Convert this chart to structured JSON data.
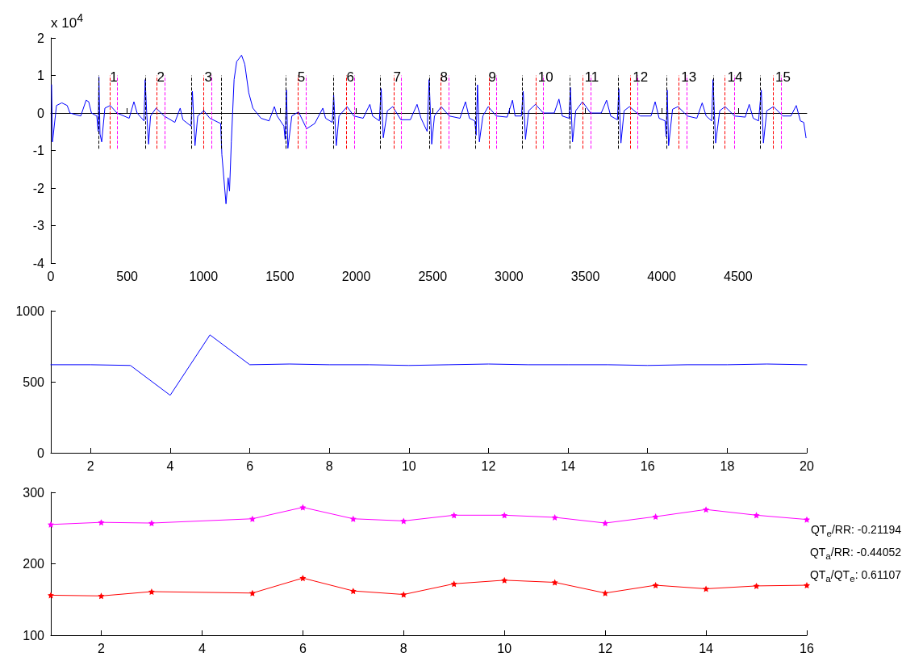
{
  "chart_data": [
    {
      "type": "line",
      "x": [
        5,
        11,
        37,
        72,
        107,
        125,
        196,
        231,
        248,
        266,
        301,
        310,
        315,
        322,
        333,
        354,
        389,
        433,
        513,
        544,
        565,
        610,
        618,
        627,
        640,
        653,
        689,
        742,
        812,
        847,
        865,
        918,
        927,
        944,
        962,
        1002,
        1041,
        1112,
        1120,
        1147,
        1161,
        1170,
        1182,
        1200,
        1217,
        1249,
        1270,
        1296,
        1323,
        1376,
        1429,
        1464,
        1482,
        1526,
        1534,
        1543,
        1552,
        1578,
        1622,
        1675,
        1728,
        1781,
        1799,
        1843,
        1852,
        1869,
        1887,
        1940,
        1984,
        2045,
        2089,
        2107,
        2151,
        2163,
        2177,
        2204,
        2239,
        2292,
        2354,
        2398,
        2424,
        2464,
        2477,
        2494,
        2512,
        2556,
        2609,
        2679,
        2715,
        2741,
        2776,
        2785,
        2794,
        2806,
        2829,
        2864,
        2917,
        2988,
        3023,
        3040,
        3081,
        3093,
        3108,
        3129,
        3173,
        3225,
        3296,
        3327,
        3349,
        3393,
        3402,
        3416,
        3437,
        3481,
        3534,
        3604,
        3639,
        3666,
        3710,
        3719,
        3733,
        3754,
        3789,
        3860,
        3930,
        3957,
        3983,
        4022,
        4029,
        4036,
        4045,
        4071,
        4107,
        4168,
        4230,
        4265,
        4291,
        4327,
        4336,
        4353,
        4380,
        4415,
        4477,
        4547,
        4573,
        4599,
        4634,
        4652,
        4666,
        4688,
        4732,
        4793,
        4846,
        4881,
        4908,
        4930,
        4945
      ],
      "series": [
        {
          "color": "#0000ff",
          "values": [
            0.75,
            -0.77,
            0.2,
            0.27,
            0.2,
            0,
            -0.08,
            0.34,
            0.3,
            0,
            -0.08,
            -0.49,
            0.96,
            -0.56,
            -0.77,
            0.13,
            0.2,
            0,
            -0.14,
            0.3,
            0,
            -0.21,
            0.89,
            0.06,
            -0.83,
            -0.08,
            0.13,
            -0.08,
            -0.25,
            0.13,
            -0.18,
            -0.35,
            0.58,
            -0.87,
            -0.08,
            0.06,
            -0.14,
            -0.28,
            -1.11,
            -2.42,
            -1.73,
            -2.08,
            -0.77,
            0.89,
            1.37,
            1.54,
            1.3,
            0.54,
            0.13,
            -0.14,
            -0.21,
            0.17,
            -0.08,
            -0.35,
            -0.7,
            0.61,
            -0.94,
            -0.08,
            0.03,
            -0.42,
            -0.28,
            0.13,
            -0.14,
            -0.25,
            0.48,
            -0.87,
            -0.08,
            0.17,
            -0.08,
            -0.14,
            0.23,
            -0.08,
            -0.21,
            0.65,
            -0.66,
            0.06,
            0.17,
            -0.18,
            -0.18,
            0.23,
            -0.14,
            -0.49,
            0.89,
            -0.83,
            -0.08,
            0.17,
            -0.08,
            -0.14,
            0.3,
            -0.14,
            -0.21,
            -0.59,
            0.75,
            -0.77,
            -0.08,
            0.17,
            -0.08,
            -0.11,
            0.34,
            -0.08,
            -0.08,
            0.58,
            -0.7,
            0.06,
            0.23,
            0,
            0,
            0.37,
            -0.08,
            -0.14,
            0.68,
            -0.77,
            0.06,
            0.3,
            0,
            0,
            0.34,
            -0.08,
            -0.18,
            0.65,
            -0.8,
            0.06,
            0.17,
            -0.08,
            -0.08,
            0.3,
            -0.14,
            -0.21,
            -0.63,
            0.61,
            -0.87,
            0.1,
            0.17,
            -0.08,
            -0.14,
            0.27,
            -0.08,
            -0.21,
            0.89,
            -0.8,
            0.06,
            0.17,
            -0.08,
            -0.11,
            0.23,
            -0.14,
            -0.21,
            0.61,
            -0.8,
            0.06,
            0.17,
            -0.08,
            -0.08,
            0.2,
            -0.21,
            -0.25,
            -0.66
          ]
        }
      ],
      "xlim": [
        0,
        4950
      ],
      "xticks": [
        0,
        500,
        1000,
        1500,
        2000,
        2500,
        3000,
        3500,
        4000,
        4500
      ],
      "ylim": [
        -4,
        2
      ],
      "yticks": [
        -4,
        -3,
        -2,
        -1,
        0,
        1,
        2
      ],
      "line_style": "solid",
      "annotations": [
        "x 10$^{4}$",
        {
          "text": "1",
          "x": 412,
          "y": 0.95
        },
        {
          "text": "2",
          "x": 720,
          "y": 0.95
        },
        {
          "text": "3",
          "x": 1032,
          "y": 0.95
        },
        {
          "text": "5",
          "x": 1640,
          "y": 0.95
        },
        {
          "text": "6",
          "x": 1961,
          "y": 0.95
        },
        {
          "text": "7",
          "x": 2268,
          "y": 0.95
        },
        {
          "text": "8",
          "x": 2574,
          "y": 0.95
        },
        {
          "text": "9",
          "x": 2891,
          "y": 0.95
        },
        {
          "text": "10",
          "x": 3240,
          "y": 0.95
        },
        {
          "text": "11",
          "x": 3542,
          "y": 0.95
        },
        {
          "text": "12",
          "x": 3860,
          "y": 0.95
        },
        {
          "text": "13",
          "x": 4177,
          "y": 0.95
        },
        {
          "text": "14",
          "x": 4480,
          "y": 0.95
        },
        {
          "text": "15",
          "x": 4794,
          "y": 0.95
        }
      ],
      "ref_lines": [
        {
          "axis": "x",
          "value": 313,
          "color": "#000000",
          "line_style": "dashed"
        },
        {
          "axis": "x",
          "value": 389,
          "color": "#ff0000",
          "line_style": "dashed"
        },
        {
          "axis": "x",
          "value": 437,
          "color": "#ff00ff",
          "line_style": "dashed"
        },
        {
          "axis": "x",
          "value": 618,
          "color": "#000000",
          "line_style": "dashed"
        },
        {
          "axis": "x",
          "value": 694,
          "color": "#ff0000",
          "line_style": "dashed"
        },
        {
          "axis": "x",
          "value": 747,
          "color": "#ff00ff",
          "line_style": "dashed"
        },
        {
          "axis": "x",
          "value": 919,
          "color": "#000000",
          "line_style": "dashed"
        },
        {
          "axis": "x",
          "value": 1002,
          "color": "#ff0000",
          "line_style": "dashed"
        },
        {
          "axis": "x",
          "value": 1050,
          "color": "#ff00ff",
          "line_style": "dashed"
        },
        {
          "axis": "x",
          "value": 1116,
          "color": "#000000",
          "line_style": "dashed"
        },
        {
          "axis": "x",
          "value": 1538,
          "color": "#000000",
          "line_style": "dashed"
        },
        {
          "axis": "x",
          "value": 1618,
          "color": "#ff0000",
          "line_style": "dashed"
        },
        {
          "axis": "x",
          "value": 1672,
          "color": "#ff00ff",
          "line_style": "dashed"
        },
        {
          "axis": "x",
          "value": 1848,
          "color": "#000000",
          "line_style": "dashed"
        },
        {
          "axis": "x",
          "value": 1934,
          "color": "#ff0000",
          "line_style": "dashed"
        },
        {
          "axis": "x",
          "value": 1989,
          "color": "#ff00ff",
          "line_style": "dashed"
        },
        {
          "axis": "x",
          "value": 2156,
          "color": "#000000",
          "line_style": "dashed"
        },
        {
          "axis": "x",
          "value": 2244,
          "color": "#ff0000",
          "line_style": "dashed"
        },
        {
          "axis": "x",
          "value": 2292,
          "color": "#ff00ff",
          "line_style": "dashed"
        },
        {
          "axis": "x",
          "value": 2477,
          "color": "#000000",
          "line_style": "dashed"
        },
        {
          "axis": "x",
          "value": 2551,
          "color": "#ff0000",
          "line_style": "dashed"
        },
        {
          "axis": "x",
          "value": 2604,
          "color": "#ff00ff",
          "line_style": "dashed"
        },
        {
          "axis": "x",
          "value": 2780,
          "color": "#000000",
          "line_style": "dashed"
        },
        {
          "axis": "x",
          "value": 2868,
          "color": "#ff0000",
          "line_style": "dashed"
        },
        {
          "axis": "x",
          "value": 2916,
          "color": "#ff00ff",
          "line_style": "dashed"
        },
        {
          "axis": "x",
          "value": 3085,
          "color": "#000000",
          "line_style": "dashed"
        },
        {
          "axis": "x",
          "value": 3178,
          "color": "#ff0000",
          "line_style": "dashed"
        },
        {
          "axis": "x",
          "value": 3226,
          "color": "#ff00ff",
          "line_style": "dashed"
        },
        {
          "axis": "x",
          "value": 3400,
          "color": "#000000",
          "line_style": "dashed"
        },
        {
          "axis": "x",
          "value": 3483,
          "color": "#ff0000",
          "line_style": "dashed"
        },
        {
          "axis": "x",
          "value": 3536,
          "color": "#ff00ff",
          "line_style": "dashed"
        },
        {
          "axis": "x",
          "value": 3714,
          "color": "#000000",
          "line_style": "dashed"
        },
        {
          "axis": "x",
          "value": 3793,
          "color": "#ff0000",
          "line_style": "dashed"
        },
        {
          "axis": "x",
          "value": 3841,
          "color": "#ff00ff",
          "line_style": "dashed"
        },
        {
          "axis": "x",
          "value": 4031,
          "color": "#000000",
          "line_style": "dashed"
        },
        {
          "axis": "x",
          "value": 4110,
          "color": "#ff0000",
          "line_style": "dashed"
        },
        {
          "axis": "x",
          "value": 4165,
          "color": "#ff00ff",
          "line_style": "dashed"
        },
        {
          "axis": "x",
          "value": 4341,
          "color": "#000000",
          "line_style": "dashed"
        },
        {
          "axis": "x",
          "value": 4415,
          "color": "#ff0000",
          "line_style": "dashed"
        },
        {
          "axis": "x",
          "value": 4475,
          "color": "#ff00ff",
          "line_style": "dashed"
        },
        {
          "axis": "x",
          "value": 4644,
          "color": "#000000",
          "line_style": "dashed"
        },
        {
          "axis": "x",
          "value": 4732,
          "color": "#ff0000",
          "line_style": "dashed"
        },
        {
          "axis": "x",
          "value": 4780,
          "color": "#ff00ff",
          "line_style": "dashed"
        }
      ]
    },
    {
      "type": "line",
      "x": [
        1,
        2,
        3,
        4,
        5,
        6,
        7,
        8,
        9,
        10,
        11,
        12,
        13,
        14,
        15,
        16,
        17,
        18,
        19,
        20
      ],
      "series": [
        {
          "color": "#0000ff",
          "values": [
            620,
            620,
            615,
            405,
            830,
            620,
            625,
            620,
            620,
            615,
            620,
            625,
            620,
            620,
            620,
            615,
            620,
            620,
            625,
            620
          ]
        }
      ],
      "xlim": [
        1,
        20
      ],
      "xticks": [
        2,
        4,
        6,
        8,
        10,
        12,
        14,
        16,
        18,
        20
      ],
      "ylim": [
        0,
        1000
      ],
      "yticks": [
        0,
        500,
        1000
      ],
      "line_style": "solid"
    },
    {
      "type": "line",
      "x": [
        1,
        2,
        3,
        4,
        5,
        6,
        7,
        8,
        9,
        10,
        11,
        12,
        13,
        14,
        15,
        16
      ],
      "series": [
        {
          "color": "#ff00ff",
          "values": [
            255,
            258,
            257,
            null,
            263,
            279,
            263,
            260,
            268,
            268,
            265,
            257,
            266,
            276,
            268,
            262
          ]
        },
        {
          "color": "#ff0000",
          "values": [
            156,
            155,
            161,
            null,
            159,
            180,
            162,
            157,
            172,
            177,
            174,
            159,
            170,
            165,
            169,
            170
          ]
        }
      ],
      "xlim": [
        1,
        16
      ],
      "xticks": [
        2,
        4,
        6,
        8,
        10,
        12,
        14,
        16
      ],
      "ylim": [
        100,
        300
      ],
      "yticks": [
        100,
        200,
        300
      ],
      "marker": "star",
      "line_style": "solid",
      "annotations": [
        "QT$_{e}$/RR: -0.21194",
        "QT$_{a}$/RR: -0.44052",
        "QT$_{a}$/QT$_{e}$: 0.61107"
      ]
    }
  ]
}
